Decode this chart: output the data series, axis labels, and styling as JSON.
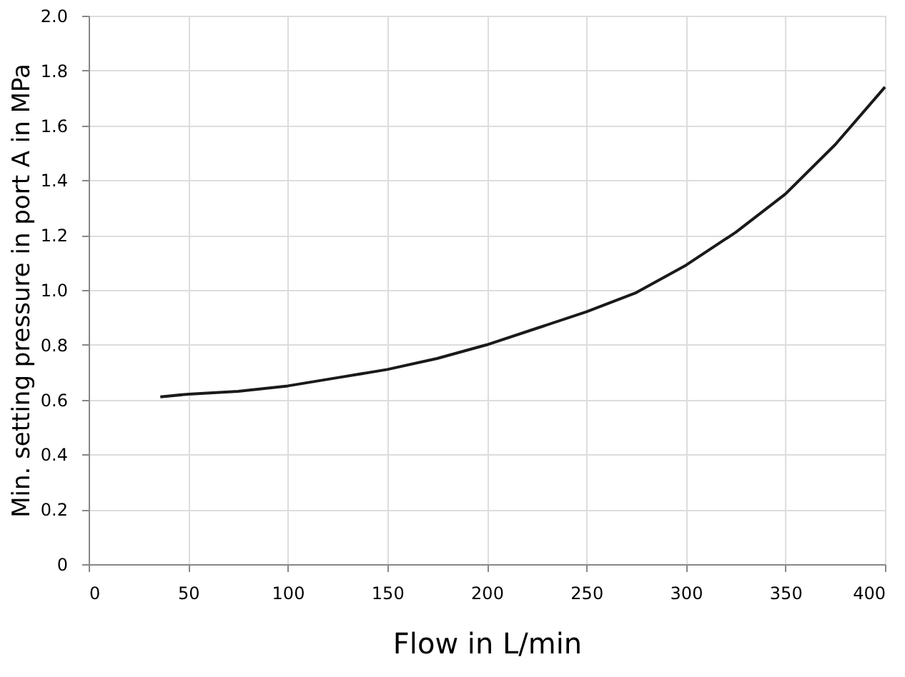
{
  "chart_data": {
    "type": "line",
    "xlabel": "Flow in L/min",
    "ylabel": "Min. setting pressure in port A in MPa",
    "x": [
      36,
      50,
      75,
      100,
      125,
      150,
      175,
      200,
      225,
      250,
      275,
      300,
      325,
      350,
      375,
      400
    ],
    "series": [
      {
        "color": "#1a1a1a",
        "values": [
          0.61,
          0.62,
          0.63,
          0.65,
          0.68,
          0.71,
          0.75,
          0.8,
          0.86,
          0.92,
          0.99,
          1.09,
          1.21,
          1.35,
          1.53,
          1.74
        ]
      }
    ],
    "xlim": [
      0,
      400
    ],
    "xticks": [
      0,
      50,
      100,
      150,
      200,
      250,
      300,
      350,
      400
    ],
    "ylim": [
      0,
      2.0
    ],
    "yticks": [
      0,
      {
        "value": 0.2,
        "label": "0.2"
      },
      {
        "value": 0.4,
        "label": "0.4"
      },
      {
        "value": 0.6,
        "label": "0.6"
      },
      {
        "value": 0.8,
        "label": "0.8"
      },
      {
        "value": 1.0,
        "label": "1.0"
      },
      {
        "value": 1.2,
        "label": "1.2"
      },
      {
        "value": 1.4,
        "label": "1.4"
      },
      {
        "value": 1.6,
        "label": "1.6"
      },
      {
        "value": 1.8,
        "label": "1.8"
      },
      {
        "value": 2.0,
        "label": "2.0"
      }
    ],
    "grid": true,
    "marker": "none",
    "line_style": "solid"
  }
}
